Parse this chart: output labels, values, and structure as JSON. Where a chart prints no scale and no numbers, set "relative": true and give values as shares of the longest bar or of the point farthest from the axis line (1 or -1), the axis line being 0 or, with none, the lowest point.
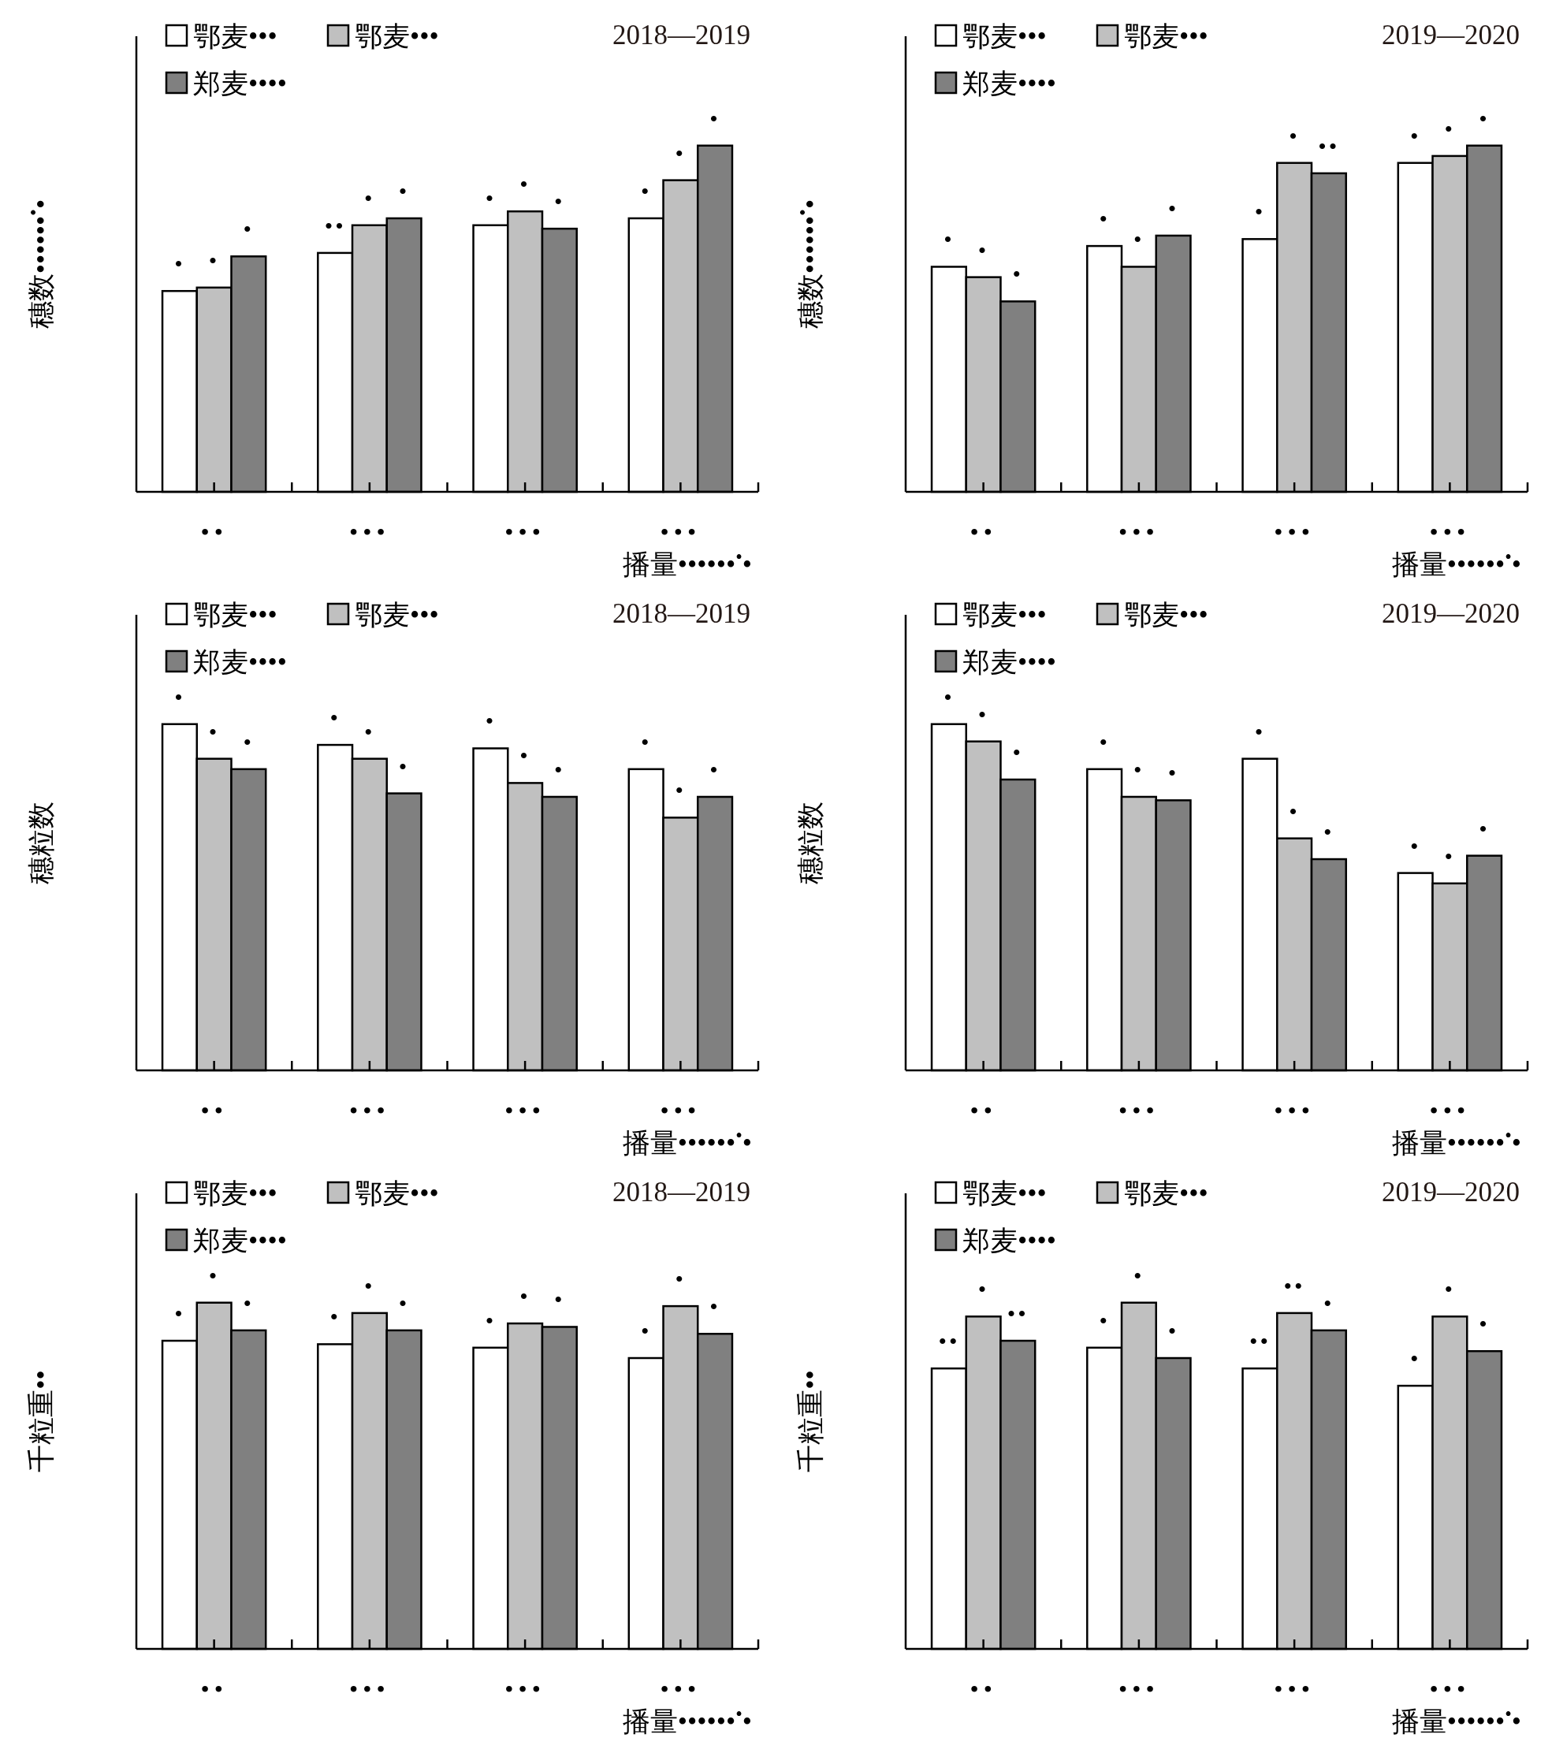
{
  "chart_data": [
    {
      "type": "bar",
      "title": "2018—2019",
      "xlabel": "播量••••••$^{•}$•",
      "ylabel": "穗数••••••$^{•}$•",
      "categories": [
        "••",
        "•••",
        "•••",
        "•••"
      ],
      "relative": true,
      "legend": "top left",
      "series": [
        {
          "name": "鄂麦•••",
          "color": "#ffffff",
          "values": [
            0.58,
            0.69,
            0.77,
            0.79
          ]
        },
        {
          "name": "鄂麦•••",
          "color": "#c0c0c0",
          "values": [
            0.59,
            0.77,
            0.81,
            0.9
          ]
        },
        {
          "name": "郑麦••••",
          "color": "#808080",
          "values": [
            0.68,
            0.79,
            0.76,
            1
          ]
        }
      ],
      "annotations": [
        "•",
        "••",
        "•",
        "•",
        "•",
        "•",
        "•",
        "•",
        "•",
        "•",
        "•",
        "•"
      ]
    },
    {
      "type": "bar",
      "title": "2019—2020",
      "xlabel": "播量••••••$^{•}$•",
      "ylabel": "穗数••••••$^{•}$•",
      "categories": [
        "••",
        "•••",
        "•••",
        "•••"
      ],
      "relative": true,
      "legend": "top left",
      "series": [
        {
          "name": "鄂麦•••",
          "color": "#ffffff",
          "values": [
            0.65,
            0.71,
            0.73,
            0.95
          ]
        },
        {
          "name": "鄂麦•••",
          "color": "#c0c0c0",
          "values": [
            0.62,
            0.65,
            0.95,
            0.97
          ]
        },
        {
          "name": "郑麦••••",
          "color": "#808080",
          "values": [
            0.55,
            0.74,
            0.92,
            1
          ]
        }
      ],
      "annotations": [
        "•",
        "•",
        "•",
        "•",
        "•",
        "•",
        "•",
        "•",
        "•",
        "•",
        "••",
        "•"
      ]
    },
    {
      "type": "bar",
      "title": "2018—2019",
      "xlabel": "播量••••••$^{•}$•",
      "ylabel": "穗粒数",
      "categories": [
        "••",
        "•••",
        "•••",
        "•••"
      ],
      "relative": true,
      "legend": "top left",
      "series": [
        {
          "name": "鄂麦•••",
          "color": "#ffffff",
          "values": [
            1,
            0.94,
            0.93,
            0.87
          ]
        },
        {
          "name": "鄂麦•••",
          "color": "#c0c0c0",
          "values": [
            0.9,
            0.9,
            0.83,
            0.73
          ]
        },
        {
          "name": "郑麦••••",
          "color": "#808080",
          "values": [
            0.87,
            0.8,
            0.79,
            0.79
          ]
        }
      ],
      "annotations": [
        "•",
        "•",
        "•",
        "•",
        "•",
        "•",
        "•",
        "•",
        "•",
        "•",
        "•",
        "•"
      ]
    },
    {
      "type": "bar",
      "title": "2019—2020",
      "xlabel": "播量••••••$^{•}$•",
      "ylabel": "穗粒数",
      "categories": [
        "••",
        "•••",
        "•••",
        "•••"
      ],
      "relative": true,
      "legend": "top left",
      "series": [
        {
          "name": "鄂麦•••",
          "color": "#ffffff",
          "values": [
            1,
            0.87,
            0.9,
            0.57
          ]
        },
        {
          "name": "鄂麦•••",
          "color": "#c0c0c0",
          "values": [
            0.95,
            0.79,
            0.67,
            0.54
          ]
        },
        {
          "name": "郑麦••••",
          "color": "#808080",
          "values": [
            0.84,
            0.78,
            0.61,
            0.62
          ]
        }
      ],
      "annotations": [
        "•",
        "•",
        "•",
        "•",
        "•",
        "•",
        "•",
        "•",
        "•",
        "•",
        "•",
        "•"
      ]
    },
    {
      "type": "bar",
      "title": "2018—2019",
      "xlabel": "播量••••••$^{•}$•",
      "ylabel": "千粒重••",
      "categories": [
        "••",
        "•••",
        "•••",
        "•••"
      ],
      "relative": true,
      "legend": "top left",
      "series": [
        {
          "name": "鄂麦•••",
          "color": "#ffffff",
          "values": [
            0.89,
            0.88,
            0.87,
            0.84
          ]
        },
        {
          "name": "鄂麦•••",
          "color": "#c0c0c0",
          "values": [
            1,
            0.97,
            0.94,
            0.99
          ]
        },
        {
          "name": "郑麦••••",
          "color": "#808080",
          "values": [
            0.92,
            0.92,
            0.93,
            0.91
          ]
        }
      ],
      "annotations": [
        "•",
        "•",
        "•",
        "•",
        "•",
        "•",
        "•",
        "•",
        "•",
        "•",
        "•",
        "•"
      ]
    },
    {
      "type": "bar",
      "title": "2019—2020",
      "xlabel": "播量••••••$^{•}$•",
      "ylabel": "千粒重••",
      "categories": [
        "••",
        "•••",
        "•••",
        "•••"
      ],
      "relative": true,
      "legend": "top left",
      "series": [
        {
          "name": "鄂麦•••",
          "color": "#ffffff",
          "values": [
            0.81,
            0.87,
            0.81,
            0.76
          ]
        },
        {
          "name": "鄂麦•••",
          "color": "#c0c0c0",
          "values": [
            0.96,
            1,
            0.97,
            0.96
          ]
        },
        {
          "name": "郑麦••••",
          "color": "#808080",
          "values": [
            0.89,
            0.84,
            0.92,
            0.86
          ]
        }
      ],
      "annotations": [
        "••",
        "•",
        "••",
        "•",
        "•",
        "•",
        "••",
        "•",
        "••",
        "•",
        "•",
        "•"
      ]
    }
  ]
}
